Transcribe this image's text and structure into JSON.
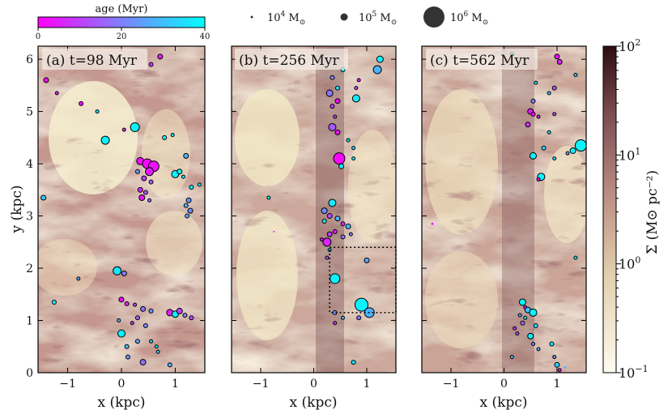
{
  "chart_data": {
    "type": "scatter",
    "description_free": true,
    "colorbar_age": {
      "label": "age (Myr)",
      "ticks": [
        "0",
        "20",
        "40"
      ],
      "range": [
        0,
        40
      ],
      "colors": [
        "#ff00ff",
        "#00ffff"
      ]
    },
    "size_legend": [
      {
        "label": "10",
        "exp": "4",
        "unit": "M",
        "mass": 10000
      },
      {
        "label": "10",
        "exp": "5",
        "unit": "M",
        "mass": 100000
      },
      {
        "label": "10",
        "exp": "6",
        "unit": "M",
        "mass": 1000000
      }
    ],
    "colorbar_sigma": {
      "label": "Σ (M⊙ pc⁻²)",
      "scale": "log",
      "range": [
        0.1,
        100
      ],
      "ticks": [
        {
          "base": "10",
          "exp": "2",
          "value": 100
        },
        {
          "base": "10",
          "exp": "1",
          "value": 10
        },
        {
          "base": "10",
          "exp": "0",
          "value": 1
        },
        {
          "base": "10",
          "exp": "−1",
          "value": 0.1
        }
      ],
      "colors": [
        "#fffbef",
        "#d8c7a6",
        "#b4877f",
        "#7e4e52",
        "#2b0d10"
      ]
    },
    "xlabel": "x (kpc)",
    "ylabel": "y (kpc)",
    "xlim": [
      -1.55,
      1.55
    ],
    "ylim": [
      0,
      6.25
    ],
    "xticks": [
      {
        "v": -1,
        "l": "−1"
      },
      {
        "v": 0,
        "l": "0"
      },
      {
        "v": 1,
        "l": "1"
      }
    ],
    "yticks": [
      {
        "v": 0,
        "l": "0"
      },
      {
        "v": 1,
        "l": "1"
      },
      {
        "v": 2,
        "l": "2"
      },
      {
        "v": 3,
        "l": "3"
      },
      {
        "v": 4,
        "l": "4"
      },
      {
        "v": 5,
        "l": "5"
      },
      {
        "v": 6,
        "l": "6"
      }
    ],
    "panels": [
      {
        "label": "(a) t=98 Myr",
        "clusters": [
          {
            "x": 0.72,
            "y": 6.05,
            "age": 5,
            "r": 3
          },
          {
            "x": 0.55,
            "y": 5.9,
            "age": 8,
            "r": 2.5
          },
          {
            "x": -1.4,
            "y": 5.6,
            "age": 2,
            "r": 3
          },
          {
            "x": -1.2,
            "y": 5.35,
            "age": 4,
            "r": 2
          },
          {
            "x": -0.75,
            "y": 5.15,
            "age": 3,
            "r": 2.5
          },
          {
            "x": -0.45,
            "y": 5.0,
            "age": 36,
            "r": 2
          },
          {
            "x": 0.05,
            "y": 4.65,
            "age": 6,
            "r": 2
          },
          {
            "x": 0.25,
            "y": 4.7,
            "age": 38,
            "r": 5.5
          },
          {
            "x": 0.8,
            "y": 4.5,
            "age": 38,
            "r": 2.5
          },
          {
            "x": 0.95,
            "y": 4.55,
            "age": 36,
            "r": 2
          },
          {
            "x": -0.3,
            "y": 4.45,
            "age": 38,
            "r": 5
          },
          {
            "x": 1.2,
            "y": 4.15,
            "age": 28,
            "r": 3
          },
          {
            "x": 0.35,
            "y": 4.05,
            "age": 2,
            "r": 4.5
          },
          {
            "x": 0.48,
            "y": 4.0,
            "age": 1,
            "r": 6
          },
          {
            "x": 0.6,
            "y": 3.95,
            "age": 3,
            "r": 6.5
          },
          {
            "x": 0.52,
            "y": 3.85,
            "age": 4,
            "r": 5
          },
          {
            "x": 0.42,
            "y": 3.72,
            "age": 10,
            "r": 3
          },
          {
            "x": 0.3,
            "y": 3.85,
            "age": 24,
            "r": 2.5
          },
          {
            "x": 0.55,
            "y": 3.65,
            "age": 15,
            "r": 2.5
          },
          {
            "x": 1.0,
            "y": 3.8,
            "age": 38,
            "r": 4.5
          },
          {
            "x": 1.08,
            "y": 3.85,
            "age": 38,
            "r": 3
          },
          {
            "x": 1.15,
            "y": 3.75,
            "age": 36,
            "r": 2
          },
          {
            "x": 1.3,
            "y": 3.55,
            "age": 38,
            "r": 2.5
          },
          {
            "x": 0.35,
            "y": 3.5,
            "age": 6,
            "r": 3
          },
          {
            "x": 0.45,
            "y": 3.45,
            "age": 12,
            "r": 2.5
          },
          {
            "x": 0.38,
            "y": 3.35,
            "age": 3,
            "r": 3.5
          },
          {
            "x": 0.52,
            "y": 3.3,
            "age": 18,
            "r": 2
          },
          {
            "x": 1.25,
            "y": 3.3,
            "age": 24,
            "r": 3
          },
          {
            "x": 1.2,
            "y": 3.2,
            "age": 28,
            "r": 2.5
          },
          {
            "x": 1.28,
            "y": 3.1,
            "age": 22,
            "r": 3
          },
          {
            "x": 1.22,
            "y": 3.0,
            "age": 26,
            "r": 2.5
          },
          {
            "x": 1.45,
            "y": 3.6,
            "age": 38,
            "r": 2
          },
          {
            "x": -1.45,
            "y": 3.35,
            "age": 32,
            "r": 3
          },
          {
            "x": -0.08,
            "y": 1.95,
            "age": 36,
            "r": 5
          },
          {
            "x": 0.05,
            "y": 1.9,
            "age": 20,
            "r": 3
          },
          {
            "x": -0.8,
            "y": 1.8,
            "age": 26,
            "r": 2
          },
          {
            "x": -1.25,
            "y": 1.35,
            "age": 38,
            "r": 2.5
          },
          {
            "x": 0.0,
            "y": 1.4,
            "age": 2,
            "r": 3
          },
          {
            "x": 0.1,
            "y": 1.32,
            "age": 6,
            "r": 2.5
          },
          {
            "x": 0.25,
            "y": 1.3,
            "age": 12,
            "r": 2
          },
          {
            "x": 0.4,
            "y": 1.22,
            "age": 18,
            "r": 3
          },
          {
            "x": 0.55,
            "y": 1.18,
            "age": 24,
            "r": 2.5
          },
          {
            "x": 0.3,
            "y": 1.05,
            "age": 16,
            "r": 2.5
          },
          {
            "x": 0.2,
            "y": 0.95,
            "age": 8,
            "r": 2
          },
          {
            "x": 0.45,
            "y": 0.9,
            "age": 22,
            "r": 2.5
          },
          {
            "x": 0.9,
            "y": 1.15,
            "age": 4,
            "r": 4
          },
          {
            "x": 1.0,
            "y": 1.12,
            "age": 38,
            "r": 4
          },
          {
            "x": 1.08,
            "y": 1.18,
            "age": 10,
            "r": 3.5
          },
          {
            "x": 1.18,
            "y": 1.1,
            "age": 20,
            "r": 2.5
          },
          {
            "x": 1.3,
            "y": 1.05,
            "age": 12,
            "r": 2.5
          },
          {
            "x": -0.05,
            "y": 1.0,
            "age": 28,
            "r": 2
          },
          {
            "x": 0.0,
            "y": 0.75,
            "age": 38,
            "r": 4.5
          },
          {
            "x": 0.3,
            "y": 0.6,
            "age": 26,
            "r": 2.5
          },
          {
            "x": 0.1,
            "y": 0.5,
            "age": 30,
            "r": 2.5
          },
          {
            "x": 0.55,
            "y": 0.6,
            "age": 34,
            "r": 2
          },
          {
            "x": 0.65,
            "y": 0.5,
            "age": 36,
            "r": 2
          },
          {
            "x": 0.12,
            "y": 0.3,
            "age": 24,
            "r": 2.5
          },
          {
            "x": 0.4,
            "y": 0.2,
            "age": 18,
            "r": 3.5
          },
          {
            "x": 0.9,
            "y": 0.15,
            "age": 28,
            "r": 2.5
          },
          {
            "x": 0.68,
            "y": 0.4,
            "age": 32,
            "r": 2
          }
        ]
      },
      {
        "label": "(b) t=256 Myr",
        "clusters": [
          {
            "x": 1.25,
            "y": 6.0,
            "age": 38,
            "r": 4
          },
          {
            "x": 1.2,
            "y": 5.8,
            "age": 28,
            "r": 5
          },
          {
            "x": 0.55,
            "y": 5.8,
            "age": 38,
            "r": 2.5
          },
          {
            "x": 0.35,
            "y": 5.65,
            "age": 20,
            "r": 2.5
          },
          {
            "x": 0.3,
            "y": 5.35,
            "age": 18,
            "r": 4
          },
          {
            "x": 0.45,
            "y": 5.45,
            "age": 34,
            "r": 2.5
          },
          {
            "x": 0.45,
            "y": 5.2,
            "age": 2,
            "r": 3
          },
          {
            "x": 0.35,
            "y": 5.1,
            "age": 8,
            "r": 2.5
          },
          {
            "x": 0.8,
            "y": 5.25,
            "age": 36,
            "r": 4.5
          },
          {
            "x": 0.8,
            "y": 5.45,
            "age": 12,
            "r": 2
          },
          {
            "x": 0.85,
            "y": 5.6,
            "age": 4,
            "r": 2
          },
          {
            "x": 0.4,
            "y": 4.9,
            "age": 10,
            "r": 2
          },
          {
            "x": 0.35,
            "y": 4.7,
            "age": 14,
            "r": 4.5
          },
          {
            "x": 0.45,
            "y": 4.6,
            "age": 2,
            "r": 3
          },
          {
            "x": 0.65,
            "y": 4.45,
            "age": 36,
            "r": 2
          },
          {
            "x": 0.75,
            "y": 4.3,
            "age": 34,
            "r": 2
          },
          {
            "x": 0.48,
            "y": 4.1,
            "age": 1,
            "r": 7
          },
          {
            "x": 0.52,
            "y": 3.95,
            "age": 38,
            "r": 3
          },
          {
            "x": 0.75,
            "y": 4.1,
            "age": 36,
            "r": 2
          },
          {
            "x": -0.85,
            "y": 3.35,
            "age": 38,
            "r": 2
          },
          {
            "x": 0.35,
            "y": 3.25,
            "age": 36,
            "r": 4.5
          },
          {
            "x": 0.2,
            "y": 3.1,
            "age": 22,
            "r": 3.5
          },
          {
            "x": 0.3,
            "y": 3.0,
            "age": 12,
            "r": 3
          },
          {
            "x": 0.45,
            "y": 2.95,
            "age": 28,
            "r": 3
          },
          {
            "x": 0.2,
            "y": 2.9,
            "age": 36,
            "r": 2.5
          },
          {
            "x": 0.55,
            "y": 2.85,
            "age": 6,
            "r": 2.5
          },
          {
            "x": 0.65,
            "y": 2.8,
            "age": 30,
            "r": 3
          },
          {
            "x": 0.4,
            "y": 2.7,
            "age": 4,
            "r": 2.5
          },
          {
            "x": 0.3,
            "y": 2.65,
            "age": 10,
            "r": 3
          },
          {
            "x": 0.55,
            "y": 2.6,
            "age": 18,
            "r": 2.5
          },
          {
            "x": 0.25,
            "y": 2.5,
            "age": 6,
            "r": 5
          },
          {
            "x": 0.15,
            "y": 2.55,
            "age": 3,
            "r": 2
          },
          {
            "x": 0.7,
            "y": 2.65,
            "age": 22,
            "r": 2
          },
          {
            "x": 0.3,
            "y": 2.35,
            "age": 38,
            "r": 2
          },
          {
            "x": 0.25,
            "y": 2.2,
            "age": 14,
            "r": 2
          },
          {
            "x": 1.0,
            "y": 2.15,
            "age": 26,
            "r": 3
          },
          {
            "x": 0.4,
            "y": 1.8,
            "age": 38,
            "r": 6
          },
          {
            "x": 0.9,
            "y": 1.3,
            "age": 38,
            "r": 8
          },
          {
            "x": 1.05,
            "y": 1.15,
            "age": 28,
            "r": 6
          },
          {
            "x": 0.4,
            "y": 1.15,
            "age": 24,
            "r": 2.5
          },
          {
            "x": 0.55,
            "y": 1.05,
            "age": 30,
            "r": 2
          },
          {
            "x": 0.85,
            "y": 1.05,
            "age": 18,
            "r": 2.5
          },
          {
            "x": 0.4,
            "y": 0.95,
            "age": 8,
            "r": 2
          },
          {
            "x": 0.75,
            "y": 0.2,
            "age": 38,
            "r": 2.5
          },
          {
            "x": -0.75,
            "y": 2.7,
            "age": 5,
            "r": 1
          }
        ]
      },
      {
        "label": "(c) t=562 Myr",
        "clusters": [
          {
            "x": 0.15,
            "y": 6.1,
            "age": 38,
            "r": 2
          },
          {
            "x": 1.0,
            "y": 6.05,
            "age": 2,
            "r": 3
          },
          {
            "x": 1.05,
            "y": 5.95,
            "age": 6,
            "r": 3
          },
          {
            "x": 1.35,
            "y": 5.7,
            "age": 32,
            "r": 2
          },
          {
            "x": 0.6,
            "y": 5.55,
            "age": 36,
            "r": 2
          },
          {
            "x": 0.95,
            "y": 5.45,
            "age": 12,
            "r": 2.5
          },
          {
            "x": 0.85,
            "y": 5.35,
            "age": 30,
            "r": 2
          },
          {
            "x": 0.55,
            "y": 5.2,
            "age": 20,
            "r": 2.5
          },
          {
            "x": 0.5,
            "y": 5.0,
            "age": 4,
            "r": 3.5
          },
          {
            "x": 0.55,
            "y": 4.95,
            "age": 2,
            "r": 2.5
          },
          {
            "x": 0.65,
            "y": 4.9,
            "age": 8,
            "r": 2
          },
          {
            "x": 0.95,
            "y": 4.95,
            "age": 14,
            "r": 2
          },
          {
            "x": 0.45,
            "y": 4.75,
            "age": 8,
            "r": 3
          },
          {
            "x": 0.85,
            "y": 4.6,
            "age": 34,
            "r": 2
          },
          {
            "x": 1.45,
            "y": 4.35,
            "age": 38,
            "r": 7
          },
          {
            "x": 1.3,
            "y": 4.25,
            "age": 38,
            "r": 3.5
          },
          {
            "x": 1.2,
            "y": 4.2,
            "age": 24,
            "r": 2
          },
          {
            "x": 0.55,
            "y": 4.15,
            "age": 38,
            "r": 4
          },
          {
            "x": 0.75,
            "y": 4.3,
            "age": 34,
            "r": 2.5
          },
          {
            "x": 0.95,
            "y": 4.1,
            "age": 36,
            "r": 2
          },
          {
            "x": 0.7,
            "y": 3.75,
            "age": 38,
            "r": 4.5
          },
          {
            "x": 0.65,
            "y": 3.7,
            "age": 2,
            "r": 2
          },
          {
            "x": -1.35,
            "y": 2.85,
            "age": 5,
            "r": 1.5
          },
          {
            "x": 1.35,
            "y": 2.2,
            "age": 38,
            "r": 2
          },
          {
            "x": 0.35,
            "y": 1.35,
            "age": 38,
            "r": 4
          },
          {
            "x": 0.4,
            "y": 1.25,
            "age": 2,
            "r": 2
          },
          {
            "x": 0.45,
            "y": 1.2,
            "age": 30,
            "r": 3.5
          },
          {
            "x": 0.55,
            "y": 1.15,
            "age": 38,
            "r": 4.5
          },
          {
            "x": 0.3,
            "y": 1.1,
            "age": 24,
            "r": 2
          },
          {
            "x": 0.4,
            "y": 1.05,
            "age": 36,
            "r": 2
          },
          {
            "x": 0.35,
            "y": 0.95,
            "age": 16,
            "r": 2.5
          },
          {
            "x": 0.6,
            "y": 0.9,
            "age": 34,
            "r": 2.5
          },
          {
            "x": 0.2,
            "y": 0.85,
            "age": 8,
            "r": 2
          },
          {
            "x": 0.25,
            "y": 0.75,
            "age": 12,
            "r": 2
          },
          {
            "x": 0.5,
            "y": 0.7,
            "age": 38,
            "r": 3.5
          },
          {
            "x": 0.55,
            "y": 0.55,
            "age": 20,
            "r": 2
          },
          {
            "x": 0.65,
            "y": 0.45,
            "age": 26,
            "r": 2
          },
          {
            "x": 0.9,
            "y": 0.55,
            "age": 36,
            "r": 2.5
          },
          {
            "x": 0.95,
            "y": 0.3,
            "age": 22,
            "r": 2
          },
          {
            "x": 0.15,
            "y": 0.3,
            "age": 30,
            "r": 2
          },
          {
            "x": 1.0,
            "y": 0.15,
            "age": 32,
            "r": 3
          },
          {
            "x": 1.05,
            "y": 0.05,
            "age": 4,
            "r": 2
          },
          {
            "x": 1.15,
            "y": 0.1,
            "age": 28,
            "r": 1.5
          }
        ]
      }
    ],
    "zoom_box": {
      "panel": 1,
      "x": [
        0.3,
        1.55
      ],
      "y": [
        1.15,
        2.4
      ]
    }
  }
}
